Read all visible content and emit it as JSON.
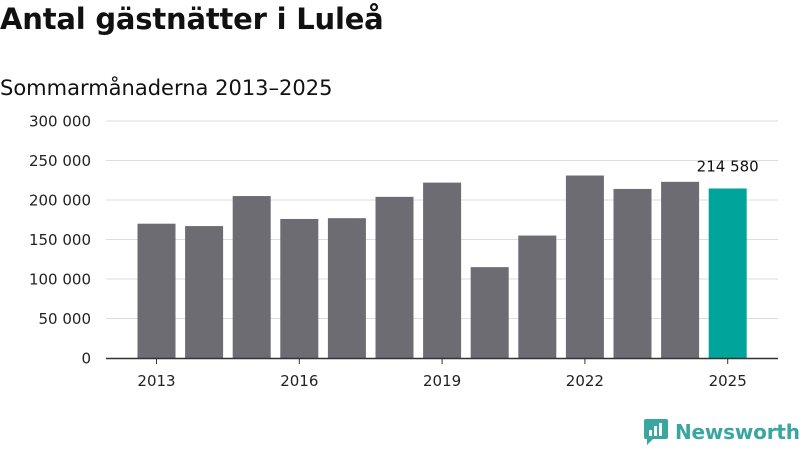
{
  "title": "Antal gästnätter i Luleå",
  "subtitle": "Sommarmånaderna 2013–2025",
  "brand": {
    "name": "Newsworthy",
    "icon": "newsworthy-logo-icon"
  },
  "chart_data": {
    "type": "bar",
    "categories": [
      "2013",
      "2014",
      "2015",
      "2016",
      "2017",
      "2018",
      "2019",
      "2020",
      "2021",
      "2022",
      "2023",
      "2024",
      "2025"
    ],
    "values": [
      170000,
      167000,
      205000,
      176000,
      177000,
      204000,
      222000,
      115000,
      155000,
      231000,
      214000,
      223000,
      214580
    ],
    "x_tick_labels": [
      "2013",
      "2016",
      "2019",
      "2022",
      "2025"
    ],
    "y_tick_labels": [
      "0",
      "50 000",
      "100 000",
      "150 000",
      "200 000",
      "250 000",
      "300 000"
    ],
    "y_ticks": [
      0,
      50000,
      100000,
      150000,
      200000,
      250000,
      300000
    ],
    "ylim": [
      0,
      300000
    ],
    "grid": true,
    "highlight": {
      "category": "2025",
      "label": "214 580"
    },
    "colors": {
      "bar": "#6d6c72",
      "highlight": "#00a49a",
      "grid": "#dddddd",
      "axis": "#333333"
    }
  }
}
